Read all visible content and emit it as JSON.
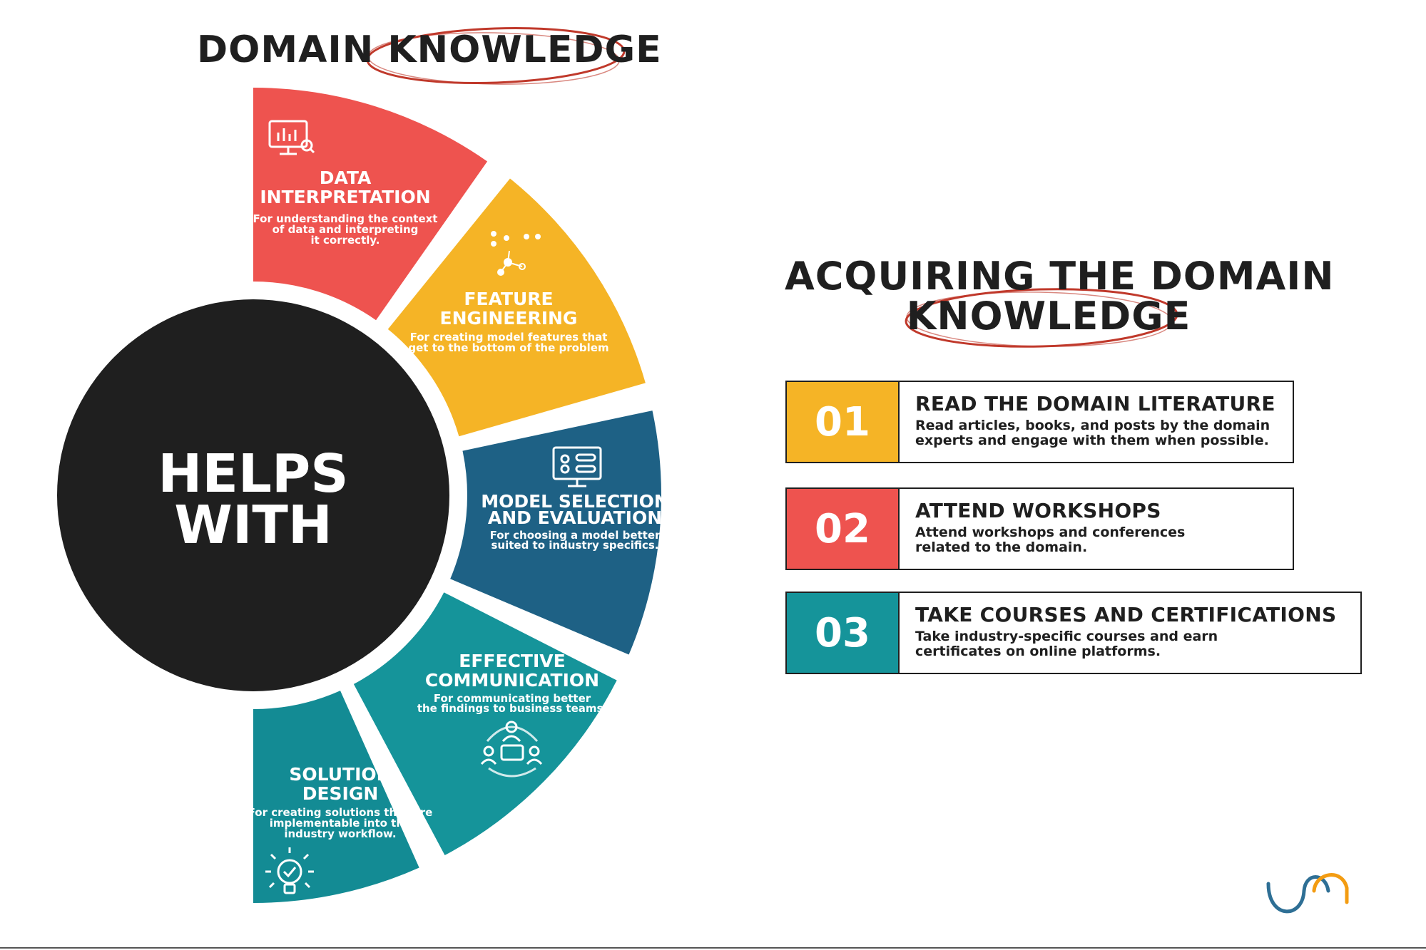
{
  "left_title": "DOMAIN KNOWLEDGE",
  "hub": {
    "line1": "HELPS",
    "line2": "WITH"
  },
  "segments": [
    {
      "title1": "DATA",
      "title2": "INTERPRETATION",
      "desc1": "For understanding the context",
      "desc2": "of data and interpreting",
      "desc3": "it correctly.",
      "color": "#ee534f",
      "icon": "monitor-chart-icon"
    },
    {
      "title1": "FEATURE",
      "title2": "ENGINEERING",
      "desc1": "For creating model features that",
      "desc2": "get to the bottom of the problem",
      "color": "#f5b426",
      "icon": "feature-network-icon"
    },
    {
      "title1": "MODEL SELECTION",
      "title2": "AND EVALUATION",
      "desc1": "For choosing a model better",
      "desc2": "suited to industry specifics.",
      "color": "#1e6185",
      "icon": "monitor-toggles-icon"
    },
    {
      "title1": "EFFECTIVE",
      "title2": "COMMUNICATION",
      "desc1": "For communicating better",
      "desc2": "the findings to business teams.",
      "color": "#15949a",
      "icon": "team-chat-icon"
    },
    {
      "title1": "SOLUTION",
      "title2": "DESIGN",
      "desc1": "For creating solutions that are",
      "desc2": "implementable into the",
      "desc3": "industry workflow.",
      "color": "#138b94",
      "icon": "lightbulb-check-icon"
    }
  ],
  "right_title": {
    "line1": "ACQUIRING THE DOMAIN",
    "line2": "KNOWLEDGE"
  },
  "steps": [
    {
      "number": "01",
      "title": "READ THE DOMAIN LITERATURE",
      "desc": "Read articles, books, and posts by the domain\nexperts and engage with them when possible.",
      "color": "#f5b426"
    },
    {
      "number": "02",
      "title": "ATTEND WORKSHOPS",
      "desc": "Attend workshops and conferences\nrelated to the domain.",
      "color": "#ee534f"
    },
    {
      "number": "03",
      "title": "TAKE COURSES AND CERTIFICATIONS",
      "desc": "Take industry-specific courses and earn\ncertificates on online platforms.",
      "color": "#15949a"
    }
  ],
  "colors": {
    "ink": "#1f1f1f",
    "accent_ellipse": "#c0392b",
    "logo_orange": "#f39c12",
    "logo_blue": "#2e6f95"
  }
}
